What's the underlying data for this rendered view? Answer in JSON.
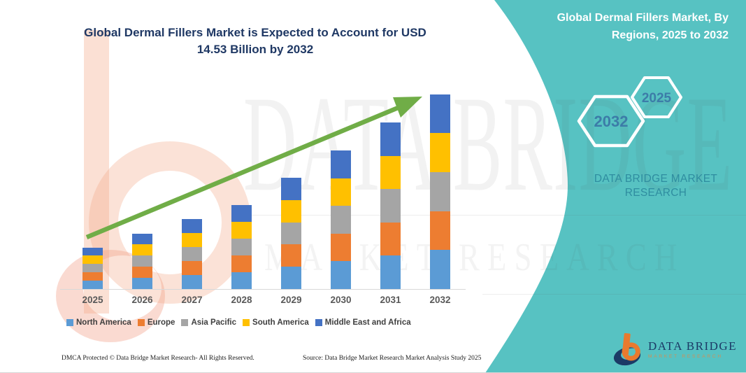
{
  "header": {
    "title_line1": "Global Dermal Fillers Market is Expected to Account for USD",
    "title_line2": "14.53 Billion by 2032",
    "title_color": "#1F3864"
  },
  "band": {
    "color": "#57C2C2",
    "title_line1": "Global Dermal Fillers Market, By",
    "title_line2": "Regions, 2025 to 2032",
    "hexagon_back_year": "2032",
    "hexagon_front_year": "2025",
    "brand_text": "DATA BRIDGE MARKET RESEARCH"
  },
  "chart_data": {
    "type": "bar",
    "stacked": true,
    "title": "Global Dermal Fillers Market is Expected to Account for USD 14.53 Billion by 2032",
    "unit": "USD Billion",
    "categories": [
      "2025",
      "2026",
      "2027",
      "2028",
      "2029",
      "2030",
      "2031",
      "2032"
    ],
    "series": [
      {
        "name": "North America",
        "color": "#5B9BD5",
        "values": [
          0.62,
          0.83,
          1.05,
          1.26,
          1.66,
          2.07,
          2.49,
          2.91
        ]
      },
      {
        "name": "Europe",
        "color": "#ED7D31",
        "values": [
          0.62,
          0.83,
          1.05,
          1.26,
          1.66,
          2.07,
          2.49,
          2.91
        ]
      },
      {
        "name": "Asia Pacific",
        "color": "#A5A5A5",
        "values": [
          0.62,
          0.83,
          1.05,
          1.26,
          1.66,
          2.07,
          2.49,
          2.91
        ]
      },
      {
        "name": "South America",
        "color": "#FFC000",
        "values": [
          0.62,
          0.83,
          1.05,
          1.26,
          1.66,
          2.07,
          2.49,
          2.91
        ]
      },
      {
        "name": "Middle East and Africa",
        "color": "#4472C4",
        "values": [
          0.62,
          0.83,
          1.05,
          1.26,
          1.66,
          2.07,
          2.49,
          2.91
        ]
      }
    ],
    "totals": [
      3.08,
      4.15,
      5.23,
      6.3,
      8.31,
      10.37,
      12.44,
      14.53
    ],
    "final_year_total_label": "USD 14.53 Billion",
    "trend_arrow": true,
    "trend_color": "#70AD47",
    "xlabel": "",
    "ylabel": "",
    "ylim": [
      0,
      15
    ],
    "grid": false,
    "legend_position": "bottom",
    "axis_line_color": "#D8D8D8"
  },
  "watermark": {
    "title": "DATA BRIDGE",
    "subtitle": "MARKET RESEARCH"
  },
  "logo": {
    "title": "DATA BRIDGE",
    "subtitle": "MARKET RESEARCH",
    "navy": "#1B3A66",
    "orange": "#E87A2E"
  },
  "footer": {
    "left": "DMCA Protected © Data Bridge Market Research-  All Rights Reserved.",
    "right": "Source: Data Bridge Market Research  Market Analysis Study 2025"
  }
}
